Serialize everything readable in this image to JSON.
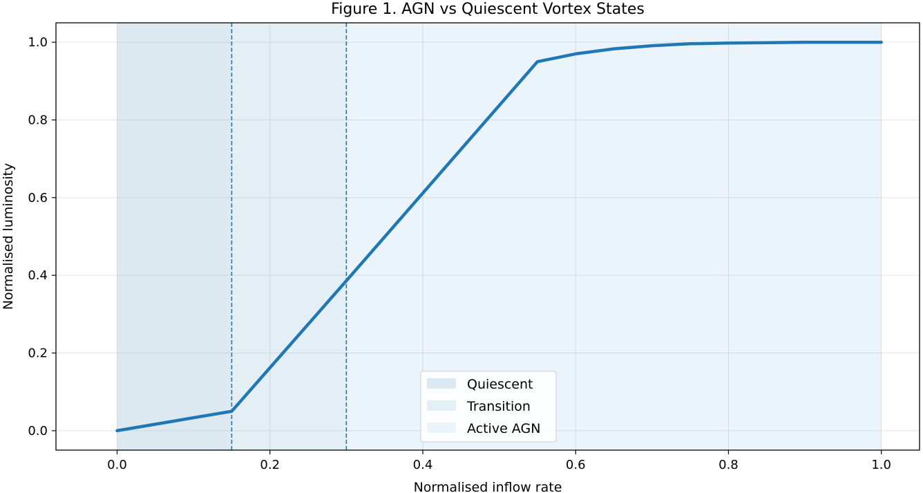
{
  "chart_data": {
    "type": "line",
    "title": "Figure 1. AGN vs Quiescent Vortex States",
    "xlabel": "Normalised inflow rate",
    "ylabel": "Normalised luminosity",
    "xlim": [
      -0.08,
      1.05
    ],
    "ylim": [
      -0.05,
      1.05
    ],
    "xticks": [
      0.0,
      0.2,
      0.4,
      0.6,
      0.8,
      1.0
    ],
    "xtick_labels": [
      "0.0",
      "0.2",
      "0.4",
      "0.6",
      "0.8",
      "1.0"
    ],
    "yticks": [
      0.0,
      0.2,
      0.4,
      0.6,
      0.8,
      1.0
    ],
    "ytick_labels": [
      "0.0",
      "0.2",
      "0.4",
      "0.6",
      "0.8",
      "1.0"
    ],
    "grid": true,
    "legend_position": "lower-center",
    "regions": [
      {
        "name": "Quiescent",
        "x_range": [
          0.0,
          0.15
        ],
        "color": "#dce9f1"
      },
      {
        "name": "Transition",
        "x_range": [
          0.15,
          0.3
        ],
        "color": "#e3eef5"
      },
      {
        "name": "Active AGN",
        "x_range": [
          0.3,
          1.0
        ],
        "color": "#eaf4fa"
      }
    ],
    "thresholds": [
      0.15,
      0.3
    ],
    "threshold_color": "#1f77b4",
    "series": [
      {
        "color": "#1f77b4",
        "x": [
          0.0,
          0.15,
          0.3,
          0.55,
          0.6,
          0.65,
          0.7,
          0.75,
          0.8,
          0.85,
          0.9,
          0.95,
          1.0
        ],
        "y": [
          0.0,
          0.05,
          0.386,
          0.95,
          0.97,
          0.983,
          0.991,
          0.996,
          0.998,
          0.999,
          1.0,
          1.0,
          1.0
        ]
      }
    ]
  }
}
